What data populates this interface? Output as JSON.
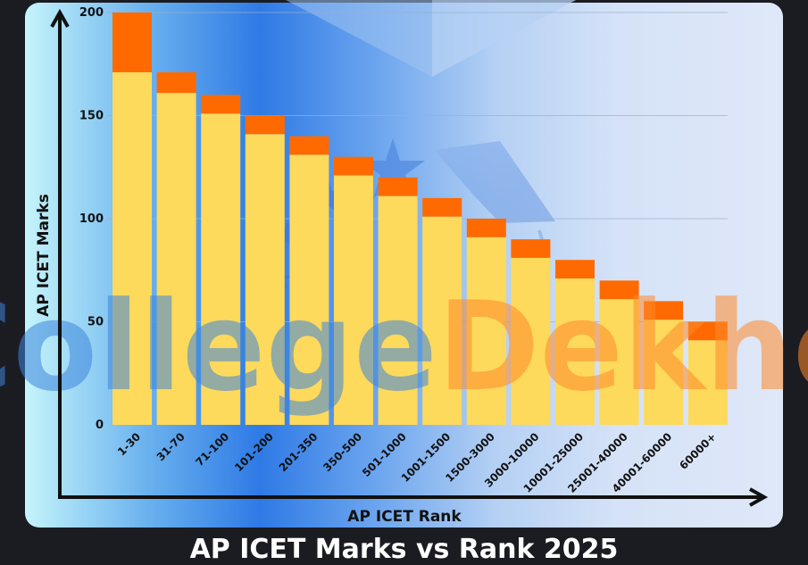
{
  "chart_data": {
    "type": "bar",
    "stacked": true,
    "categories": [
      "1-30",
      "31-70",
      "71-100",
      "101-200",
      "201-350",
      "350-500",
      "501-1000",
      "1001-1500",
      "1500-3000",
      "3000-10000",
      "10001-25000",
      "25001-40000",
      "40001-60000",
      "60000+"
    ],
    "series": [
      {
        "values": [
          171,
          161,
          151,
          141,
          131,
          121,
          111,
          101,
          91,
          81,
          71,
          61,
          51,
          41
        ],
        "color": "#fdd95c"
      },
      {
        "values": [
          29,
          10,
          9,
          9,
          9,
          9,
          9,
          9,
          9,
          9,
          9,
          9,
          9,
          9
        ],
        "color": "#ff6a00"
      }
    ],
    "xlabel": "AP ICET Rank",
    "ylabel": "AP ICET Marks",
    "ylim": [
      0,
      200
    ],
    "yticks": [
      0,
      50,
      100,
      150,
      200
    ],
    "grid": true
  },
  "watermark": {
    "part1": "College",
    "part2": "Dekho",
    "color1": "#3d86dc",
    "color2": "#ff8a2a"
  },
  "footer": {
    "title": "AP ICET Marks vs Rank 2025"
  }
}
